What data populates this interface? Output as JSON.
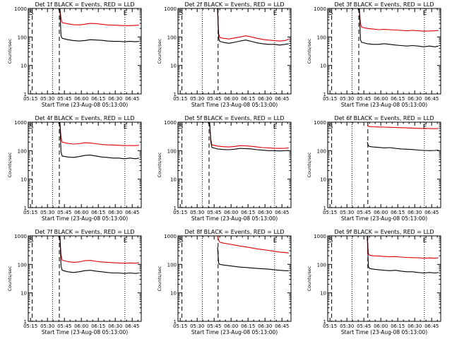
{
  "colors": {
    "events": "#000000",
    "lld": "#e00000",
    "axis": "#000000",
    "background": "#ffffff"
  },
  "x_tick_labels": [
    "05:15",
    "05:30",
    "05:45",
    "06:00",
    "06:15",
    "06:30",
    "06:45"
  ],
  "y_tick_labels": [
    "1",
    "10",
    "100",
    "1000"
  ],
  "marker_s_label": "S",
  "marker_e_label": "E",
  "xlabel": "Start Time (23-Aug-08 05:13:00)",
  "ylabel": "Counts/sec",
  "chart_data": [
    {
      "type": "line",
      "title": "Det 1f BLACK = Events, RED = LLD",
      "xlabel": "Start Time (23-Aug-08 05:13:00)",
      "ylabel": "Counts/sec",
      "x_unit": "minutes after 05:13:00",
      "xlim": [
        0,
        100
      ],
      "ylim": [
        1,
        1000
      ],
      "yscale": "log",
      "dashed_lines_min": [
        3.5,
        27.5
      ],
      "dotted_lines_min": [
        21.5,
        85.5
      ],
      "x": [
        0,
        2,
        3,
        10,
        20,
        27,
        28,
        29,
        30,
        35,
        40,
        45,
        50,
        55,
        60,
        65,
        70,
        75,
        80,
        85,
        90,
        95,
        98
      ],
      "series": [
        {
          "name": "Events",
          "values": [
            null,
            1000,
            1000,
            null,
            null,
            null,
            1000,
            110,
            90,
            80,
            75,
            72,
            75,
            80,
            78,
            76,
            72,
            70,
            70,
            68,
            70,
            68,
            70
          ]
        },
        {
          "name": "LLD",
          "values": [
            null,
            1000,
            1000,
            null,
            null,
            null,
            1000,
            450,
            320,
            290,
            270,
            265,
            280,
            300,
            295,
            280,
            265,
            260,
            255,
            250,
            250,
            255,
            260
          ]
        }
      ]
    },
    {
      "type": "line",
      "title": "Det 2f BLACK = Events, RED = LLD",
      "xlabel": "Start Time (23-Aug-08 05:13:00)",
      "ylabel": "Counts/sec",
      "x_unit": "minutes after 05:13:00",
      "xlim": [
        0,
        100
      ],
      "ylim": [
        1,
        1000
      ],
      "yscale": "log",
      "dashed_lines_min": [
        3.5,
        35.5
      ],
      "dotted_lines_min": [
        21.5,
        85.5
      ],
      "x": [
        0,
        2,
        3,
        10,
        20,
        30,
        34,
        35,
        36,
        37,
        40,
        45,
        50,
        55,
        60,
        65,
        70,
        75,
        80,
        85,
        90,
        95,
        98
      ],
      "series": [
        {
          "name": "Events",
          "values": [
            null,
            1000,
            1000,
            null,
            null,
            null,
            null,
            1000,
            90,
            70,
            65,
            60,
            65,
            72,
            78,
            70,
            62,
            58,
            55,
            55,
            52,
            55,
            58
          ]
        },
        {
          "name": "LLD",
          "values": [
            null,
            1000,
            1000,
            null,
            null,
            null,
            null,
            1000,
            130,
            95,
            90,
            85,
            92,
            100,
            110,
            100,
            90,
            82,
            78,
            75,
            72,
            75,
            85
          ]
        }
      ]
    },
    {
      "type": "line",
      "title": "Det 3f BLACK = Events, RED = LLD",
      "xlabel": "Start Time (23-Aug-08 05:13:00)",
      "ylabel": "Counts/sec",
      "x_unit": "minutes after 05:13:00",
      "xlim": [
        0,
        100
      ],
      "ylim": [
        1,
        1000
      ],
      "yscale": "log",
      "dashed_lines_min": [
        3.5,
        27.5
      ],
      "dotted_lines_min": [
        21.5,
        85.5
      ],
      "x": [
        0,
        2,
        3,
        10,
        20,
        27,
        28,
        29,
        30,
        35,
        40,
        45,
        50,
        55,
        60,
        65,
        70,
        75,
        80,
        85,
        90,
        95,
        98
      ],
      "series": [
        {
          "name": "Events",
          "values": [
            null,
            1000,
            1000,
            null,
            null,
            null,
            1000,
            80,
            65,
            58,
            55,
            55,
            58,
            55,
            52,
            50,
            48,
            50,
            48,
            45,
            48,
            45,
            48
          ]
        },
        {
          "name": "LLD",
          "values": [
            null,
            1000,
            1000,
            null,
            null,
            null,
            1000,
            300,
            220,
            200,
            190,
            180,
            185,
            180,
            175,
            170,
            165,
            170,
            165,
            160,
            162,
            165,
            168
          ]
        }
      ]
    },
    {
      "type": "line",
      "title": "Det 4f BLACK = Events, RED = LLD",
      "xlabel": "Start Time (23-Aug-08 05:13:00)",
      "ylabel": "Counts/sec",
      "x_unit": "minutes after 05:13:00",
      "xlim": [
        0,
        100
      ],
      "ylim": [
        1,
        1000
      ],
      "yscale": "log",
      "dashed_lines_min": [
        3.5,
        27.5
      ],
      "dotted_lines_min": [
        21.5,
        85.5
      ],
      "x": [
        0,
        2,
        3,
        10,
        20,
        27,
        28,
        29,
        30,
        35,
        40,
        45,
        50,
        55,
        60,
        65,
        70,
        75,
        80,
        85,
        90,
        95,
        98
      ],
      "series": [
        {
          "name": "Events",
          "values": [
            null,
            1000,
            1000,
            null,
            null,
            null,
            1000,
            90,
            65,
            60,
            58,
            62,
            68,
            70,
            65,
            60,
            58,
            55,
            55,
            52,
            55,
            52,
            55
          ]
        },
        {
          "name": "LLD",
          "values": [
            null,
            1000,
            1000,
            null,
            null,
            null,
            1000,
            300,
            200,
            180,
            170,
            175,
            190,
            185,
            175,
            165,
            160,
            158,
            155,
            150,
            152,
            150,
            155
          ]
        }
      ]
    },
    {
      "type": "line",
      "title": "Det 5f BLACK = Events, RED = LLD",
      "xlabel": "Start Time (23-Aug-08 05:13:00)",
      "ylabel": "Counts/sec",
      "x_unit": "minutes after 05:13:00",
      "xlim": [
        0,
        100
      ],
      "ylim": [
        1,
        1000
      ],
      "yscale": "log",
      "dashed_lines_min": [
        3.5,
        27.5
      ],
      "dotted_lines_min": [
        21.5,
        85.5
      ],
      "x": [
        0,
        2,
        3,
        10,
        20,
        27,
        28,
        29,
        30,
        35,
        40,
        45,
        50,
        55,
        60,
        65,
        70,
        75,
        80,
        85,
        90,
        95,
        98
      ],
      "series": [
        {
          "name": "Events",
          "values": [
            null,
            1000,
            1000,
            null,
            null,
            null,
            1000,
            220,
            130,
            115,
            110,
            108,
            112,
            120,
            118,
            115,
            108,
            104,
            100,
            100,
            98,
            100,
            102
          ]
        },
        {
          "name": "LLD",
          "values": [
            null,
            1000,
            1000,
            null,
            null,
            null,
            1000,
            260,
            160,
            145,
            138,
            135,
            140,
            150,
            148,
            142,
            135,
            128,
            125,
            122,
            120,
            122,
            125
          ]
        }
      ]
    },
    {
      "type": "line",
      "title": "Det 6f BLACK = Events, RED = LLD",
      "xlabel": "Start Time (23-Aug-08 05:13:00)",
      "ylabel": "Counts/sec",
      "x_unit": "minutes after 05:13:00",
      "xlim": [
        0,
        100
      ],
      "ylim": [
        1,
        1000
      ],
      "yscale": "log",
      "dashed_lines_min": [
        3.5,
        35.5
      ],
      "dotted_lines_min": [
        21.5,
        85.5
      ],
      "x": [
        0,
        2,
        3,
        10,
        20,
        30,
        34,
        35,
        36,
        37,
        40,
        45,
        50,
        55,
        60,
        65,
        70,
        75,
        80,
        85,
        90,
        95,
        98
      ],
      "series": [
        {
          "name": "Events",
          "values": [
            null,
            1000,
            1000,
            null,
            null,
            null,
            null,
            200,
            150,
            140,
            135,
            130,
            125,
            128,
            120,
            115,
            112,
            110,
            105,
            102,
            100,
            102,
            105
          ]
        },
        {
          "name": "LLD",
          "values": [
            null,
            1000,
            1000,
            null,
            null,
            null,
            null,
            800,
            720,
            700,
            690,
            680,
            670,
            660,
            650,
            640,
            630,
            620,
            610,
            600,
            600,
            590,
            600
          ]
        }
      ]
    },
    {
      "type": "line",
      "title": "Det 7f BLACK = Events, RED = LLD",
      "xlabel": "Start Time (23-Aug-08 05:13:00)",
      "ylabel": "Counts/sec",
      "x_unit": "minutes after 05:13:00",
      "xlim": [
        0,
        100
      ],
      "ylim": [
        1,
        1000
      ],
      "yscale": "log",
      "dashed_lines_min": [
        3.5,
        27.5
      ],
      "dotted_lines_min": [
        21.5,
        85.5
      ],
      "x": [
        0,
        2,
        3,
        10,
        20,
        27,
        28,
        29,
        30,
        35,
        40,
        45,
        50,
        55,
        60,
        65,
        70,
        75,
        80,
        85,
        90,
        95,
        98
      ],
      "series": [
        {
          "name": "Events",
          "values": [
            null,
            1000,
            1000,
            null,
            null,
            null,
            1000,
            90,
            62,
            55,
            52,
            55,
            60,
            62,
            58,
            55,
            52,
            50,
            50,
            48,
            50,
            48,
            50
          ]
        },
        {
          "name": "LLD",
          "values": [
            null,
            1000,
            1000,
            null,
            null,
            null,
            1000,
            220,
            140,
            125,
            118,
            122,
            135,
            138,
            128,
            122,
            118,
            115,
            112,
            110,
            112,
            110,
            115
          ]
        }
      ]
    },
    {
      "type": "line",
      "title": "Det 8f BLACK = Events, RED = LLD",
      "xlabel": "Start Time (23-Aug-08 05:13:00)",
      "ylabel": "Counts/sec",
      "x_unit": "minutes after 05:13:00",
      "xlim": [
        0,
        100
      ],
      "ylim": [
        1,
        1000
      ],
      "yscale": "log",
      "dashed_lines_min": [
        3.5,
        35.5
      ],
      "dotted_lines_min": [
        21.5,
        85.5
      ],
      "x": [
        0,
        2,
        3,
        10,
        20,
        30,
        34,
        35,
        36,
        37,
        40,
        45,
        50,
        55,
        60,
        65,
        70,
        75,
        80,
        85,
        90,
        95,
        98
      ],
      "series": [
        {
          "name": "Events",
          "values": [
            null,
            1000,
            1000,
            null,
            null,
            null,
            null,
            400,
            110,
            100,
            95,
            90,
            85,
            80,
            78,
            75,
            72,
            70,
            68,
            65,
            62,
            60,
            60
          ]
        },
        {
          "name": "LLD",
          "values": [
            null,
            1000,
            1000,
            null,
            null,
            null,
            null,
            1000,
            700,
            600,
            560,
            520,
            480,
            440,
            410,
            380,
            350,
            330,
            310,
            290,
            270,
            260,
            250
          ]
        }
      ]
    },
    {
      "type": "line",
      "title": "Det 9f BLACK = Events, RED = LLD",
      "xlabel": "Start Time (23-Aug-08 05:13:00)",
      "ylabel": "Counts/sec",
      "x_unit": "minutes after 05:13:00",
      "xlim": [
        0,
        100
      ],
      "ylim": [
        1,
        1000
      ],
      "yscale": "log",
      "dashed_lines_min": [
        3.5,
        35.5
      ],
      "dotted_lines_min": [
        21.5,
        85.5
      ],
      "x": [
        0,
        2,
        3,
        10,
        20,
        30,
        34,
        35,
        36,
        37,
        40,
        45,
        50,
        55,
        60,
        65,
        70,
        75,
        80,
        85,
        90,
        95,
        98
      ],
      "series": [
        {
          "name": "Events",
          "values": [
            null,
            1000,
            1000,
            null,
            null,
            null,
            null,
            1000,
            85,
            72,
            68,
            65,
            62,
            60,
            62,
            58,
            55,
            55,
            52,
            50,
            52,
            50,
            52
          ]
        },
        {
          "name": "LLD",
          "values": [
            null,
            1000,
            1000,
            null,
            null,
            null,
            null,
            1000,
            240,
            210,
            200,
            195,
            190,
            185,
            188,
            180,
            175,
            172,
            170,
            165,
            168,
            165,
            170
          ]
        }
      ]
    }
  ]
}
